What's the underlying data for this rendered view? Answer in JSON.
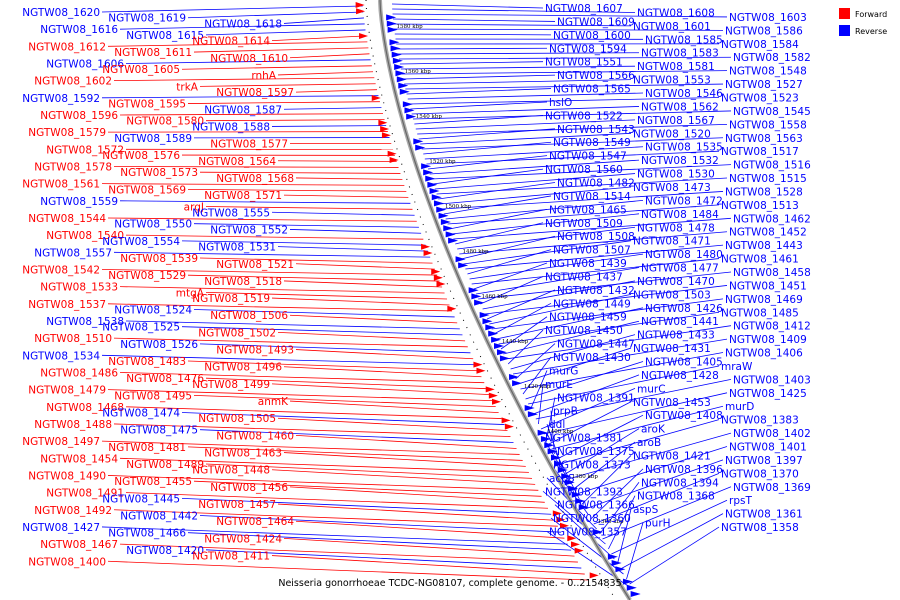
{
  "caption": "Neisseria gonorrhoeae TCDC-NG08107, complete genome. - 0..2154835",
  "legend": [
    {
      "label": "Forward",
      "color": "#ff0000"
    },
    {
      "label": "Reverse",
      "color": "#0000ff"
    }
  ],
  "colors": {
    "forward": "#ff0000",
    "reverse": "#0000ff",
    "backbone": "#888888"
  },
  "ticks": [
    "1580 kbp",
    "1560 kbp",
    "1540 kbp",
    "1520 kbp",
    "1500 kbp",
    "1480 kbp",
    "1460 kbp",
    "1440 kbp",
    "1420 kbp",
    "1400 kbp",
    "1380 kbp",
    "1360 kbp"
  ],
  "left_labels": [
    {
      "t": "NGTW08_1620",
      "s": "r"
    },
    {
      "t": "NGTW08_1619",
      "s": "r"
    },
    {
      "t": "NGTW08_1618",
      "s": "r"
    },
    {
      "t": "NGTW08_1616",
      "s": "r"
    },
    {
      "t": "NGTW08_1615",
      "s": "r"
    },
    {
      "t": "NGTW08_1614",
      "s": "f"
    },
    {
      "t": "NGTW08_1612",
      "s": "f"
    },
    {
      "t": "NGTW08_1611",
      "s": "f"
    },
    {
      "t": "NGTW08_1610",
      "s": "f"
    },
    {
      "t": "NGTW08_1606",
      "s": "r"
    },
    {
      "t": "NGTW08_1605",
      "s": "f"
    },
    {
      "t": "rnhA",
      "s": "f"
    },
    {
      "t": "NGTW08_1602",
      "s": "f"
    },
    {
      "t": "trkA",
      "s": "f"
    },
    {
      "t": "NGTW08_1597",
      "s": "f"
    },
    {
      "t": "NGTW08_1592",
      "s": "r"
    },
    {
      "t": "NGTW08_1595",
      "s": "f"
    },
    {
      "t": "NGTW08_1587",
      "s": "r"
    },
    {
      "t": "NGTW08_1596",
      "s": "f"
    },
    {
      "t": "NGTW08_1580",
      "s": "f"
    },
    {
      "t": "NGTW08_1588",
      "s": "r"
    },
    {
      "t": "NGTW08_1579",
      "s": "f"
    },
    {
      "t": "NGTW08_1589",
      "s": "r"
    },
    {
      "t": "NGTW08_1577",
      "s": "f"
    },
    {
      "t": "NGTW08_1572",
      "s": "f"
    },
    {
      "t": "NGTW08_1576",
      "s": "f"
    },
    {
      "t": "NGTW08_1564",
      "s": "f"
    },
    {
      "t": "NGTW08_1578",
      "s": "f"
    },
    {
      "t": "NGTW08_1573",
      "s": "f"
    },
    {
      "t": "NGTW08_1568",
      "s": "f"
    },
    {
      "t": "NGTW08_1561",
      "s": "f"
    },
    {
      "t": "NGTW08_1569",
      "s": "f"
    },
    {
      "t": "NGTW08_1571",
      "s": "f"
    },
    {
      "t": "NGTW08_1559",
      "s": "r"
    },
    {
      "t": "argJ",
      "s": "f"
    },
    {
      "t": "NGTW08_1555",
      "s": "r"
    },
    {
      "t": "NGTW08_1544",
      "s": "f"
    },
    {
      "t": "NGTW08_1550",
      "s": "r"
    },
    {
      "t": "NGTW08_1552",
      "s": "r"
    },
    {
      "t": "NGTW08_1540",
      "s": "f"
    },
    {
      "t": "NGTW08_1554",
      "s": "r"
    },
    {
      "t": "NGTW08_1531",
      "s": "r"
    },
    {
      "t": "NGTW08_1557",
      "s": "r"
    },
    {
      "t": "NGTW08_1539",
      "s": "f"
    },
    {
      "t": "NGTW08_1521",
      "s": "f"
    },
    {
      "t": "NGTW08_1542",
      "s": "f"
    },
    {
      "t": "NGTW08_1529",
      "s": "f"
    },
    {
      "t": "NGTW08_1518",
      "s": "f"
    },
    {
      "t": "NGTW08_1533",
      "s": "f"
    },
    {
      "t": "mtgA",
      "s": "f"
    },
    {
      "t": "NGTW08_1519",
      "s": "f"
    },
    {
      "t": "NGTW08_1537",
      "s": "f"
    },
    {
      "t": "NGTW08_1524",
      "s": "r"
    },
    {
      "t": "NGTW08_1506",
      "s": "f"
    },
    {
      "t": "NGTW08_1538",
      "s": "r"
    },
    {
      "t": "NGTW08_1525",
      "s": "r"
    },
    {
      "t": "NGTW08_1502",
      "s": "f"
    },
    {
      "t": "NGTW08_1510",
      "s": "f"
    },
    {
      "t": "NGTW08_1526",
      "s": "r"
    },
    {
      "t": "NGTW08_1493",
      "s": "f"
    },
    {
      "t": "NGTW08_1534",
      "s": "r"
    },
    {
      "t": "NGTW08_1483",
      "s": "f"
    },
    {
      "t": "NGTW08_1496",
      "s": "f"
    },
    {
      "t": "NGTW08_1486",
      "s": "f"
    },
    {
      "t": "NGTW08_1476",
      "s": "f"
    },
    {
      "t": "NGTW08_1499",
      "s": "f"
    },
    {
      "t": "NGTW08_1479",
      "s": "f"
    },
    {
      "t": "NGTW08_1495",
      "s": "f"
    },
    {
      "t": "anmK",
      "s": "f"
    },
    {
      "t": "NGTW08_1468",
      "s": "f"
    },
    {
      "t": "NGTW08_1474",
      "s": "r"
    },
    {
      "t": "NGTW08_1505",
      "s": "f"
    },
    {
      "t": "NGTW08_1488",
      "s": "f"
    },
    {
      "t": "NGTW08_1475",
      "s": "r"
    },
    {
      "t": "NGTW08_1460",
      "s": "f"
    },
    {
      "t": "NGTW08_1497",
      "s": "f"
    },
    {
      "t": "NGTW08_1481",
      "s": "f"
    },
    {
      "t": "NGTW08_1463",
      "s": "f"
    },
    {
      "t": "NGTW08_1454",
      "s": "f"
    },
    {
      "t": "NGTW08_1489",
      "s": "f"
    },
    {
      "t": "NGTW08_1448",
      "s": "f"
    },
    {
      "t": "NGTW08_1490",
      "s": "f"
    },
    {
      "t": "NGTW08_1455",
      "s": "f"
    },
    {
      "t": "NGTW08_1456",
      "s": "f"
    },
    {
      "t": "NGTW08_1491",
      "s": "f"
    },
    {
      "t": "NGTW08_1445",
      "s": "r"
    },
    {
      "t": "NGTW08_1457",
      "s": "f"
    },
    {
      "t": "NGTW08_1492",
      "s": "f"
    },
    {
      "t": "NGTW08_1442",
      "s": "r"
    },
    {
      "t": "NGTW08_1464",
      "s": "f"
    },
    {
      "t": "NGTW08_1427",
      "s": "r"
    },
    {
      "t": "NGTW08_1466",
      "s": "r"
    },
    {
      "t": "NGTW08_1424",
      "s": "f"
    },
    {
      "t": "NGTW08_1467",
      "s": "f"
    },
    {
      "t": "NGTW08_1420",
      "s": "r"
    },
    {
      "t": "NGTW08_1411",
      "s": "f"
    },
    {
      "t": "NGTW08_1400",
      "s": "f"
    }
  ],
  "right_labels": [
    {
      "t": "NGTW08_1607",
      "s": "r"
    },
    {
      "t": "NGTW08_1608",
      "s": "r"
    },
    {
      "t": "NGTW08_1603",
      "s": "r"
    },
    {
      "t": "NGTW08_1609",
      "s": "r"
    },
    {
      "t": "NGTW08_1601",
      "s": "r"
    },
    {
      "t": "NGTW08_1586",
      "s": "r"
    },
    {
      "t": "NGTW08_1600",
      "s": "r"
    },
    {
      "t": "NGTW08_1585",
      "s": "r"
    },
    {
      "t": "NGTW08_1584",
      "s": "r"
    },
    {
      "t": "NGTW08_1594",
      "s": "r"
    },
    {
      "t": "NGTW08_1583",
      "s": "r"
    },
    {
      "t": "NGTW08_1582",
      "s": "r"
    },
    {
      "t": "NGTW08_1551",
      "s": "r"
    },
    {
      "t": "NGTW08_1581",
      "s": "r"
    },
    {
      "t": "NGTW08_1548",
      "s": "r"
    },
    {
      "t": "NGTW08_1566",
      "s": "r"
    },
    {
      "t": "NGTW08_1553",
      "s": "r"
    },
    {
      "t": "NGTW08_1527",
      "s": "r"
    },
    {
      "t": "NGTW08_1565",
      "s": "r"
    },
    {
      "t": "NGTW08_1546",
      "s": "r"
    },
    {
      "t": "NGTW08_1523",
      "s": "r"
    },
    {
      "t": "hslO",
      "s": "r"
    },
    {
      "t": "NGTW08_1562",
      "s": "r"
    },
    {
      "t": "NGTW08_1545",
      "s": "r"
    },
    {
      "t": "NGTW08_1522",
      "s": "r"
    },
    {
      "t": "NGTW08_1567",
      "s": "r"
    },
    {
      "t": "NGTW08_1558",
      "s": "r"
    },
    {
      "t": "NGTW08_1543",
      "s": "r"
    },
    {
      "t": "NGTW08_1520",
      "s": "r"
    },
    {
      "t": "NGTW08_1563",
      "s": "r"
    },
    {
      "t": "NGTW08_1549",
      "s": "r"
    },
    {
      "t": "NGTW08_1535",
      "s": "r"
    },
    {
      "t": "NGTW08_1517",
      "s": "r"
    },
    {
      "t": "NGTW08_1547",
      "s": "r"
    },
    {
      "t": "NGTW08_1532",
      "s": "r"
    },
    {
      "t": "NGTW08_1516",
      "s": "r"
    },
    {
      "t": "NGTW08_1560",
      "s": "r"
    },
    {
      "t": "NGTW08_1530",
      "s": "r"
    },
    {
      "t": "NGTW08_1515",
      "s": "r"
    },
    {
      "t": "NGTW08_1482",
      "s": "r"
    },
    {
      "t": "NGTW08_1473",
      "s": "r"
    },
    {
      "t": "NGTW08_1528",
      "s": "r"
    },
    {
      "t": "NGTW08_1514",
      "s": "r"
    },
    {
      "t": "NGTW08_1472",
      "s": "r"
    },
    {
      "t": "NGTW08_1513",
      "s": "r"
    },
    {
      "t": "NGTW08_1465",
      "s": "r"
    },
    {
      "t": "NGTW08_1484",
      "s": "r"
    },
    {
      "t": "NGTW08_1462",
      "s": "r"
    },
    {
      "t": "NGTW08_1509",
      "s": "r"
    },
    {
      "t": "NGTW08_1478",
      "s": "r"
    },
    {
      "t": "NGTW08_1452",
      "s": "r"
    },
    {
      "t": "NGTW08_1508",
      "s": "r"
    },
    {
      "t": "NGTW08_1471",
      "s": "r"
    },
    {
      "t": "NGTW08_1443",
      "s": "r"
    },
    {
      "t": "NGTW08_1507",
      "s": "r"
    },
    {
      "t": "NGTW08_1480",
      "s": "r"
    },
    {
      "t": "NGTW08_1461",
      "s": "r"
    },
    {
      "t": "NGTW08_1439",
      "s": "r"
    },
    {
      "t": "NGTW08_1477",
      "s": "r"
    },
    {
      "t": "NGTW08_1458",
      "s": "r"
    },
    {
      "t": "NGTW08_1437",
      "s": "r"
    },
    {
      "t": "NGTW08_1470",
      "s": "r"
    },
    {
      "t": "NGTW08_1451",
      "s": "r"
    },
    {
      "t": "NGTW08_1432",
      "s": "r"
    },
    {
      "t": "NGTW08_1503",
      "s": "r"
    },
    {
      "t": "NGTW08_1469",
      "s": "r"
    },
    {
      "t": "NGTW08_1449",
      "s": "r"
    },
    {
      "t": "NGTW08_1426",
      "s": "r"
    },
    {
      "t": "NGTW08_1485",
      "s": "r"
    },
    {
      "t": "NGTW08_1459",
      "s": "r"
    },
    {
      "t": "NGTW08_1441",
      "s": "r"
    },
    {
      "t": "NGTW08_1412",
      "s": "r"
    },
    {
      "t": "NGTW08_1450",
      "s": "r"
    },
    {
      "t": "NGTW08_1433",
      "s": "r"
    },
    {
      "t": "NGTW08_1409",
      "s": "r"
    },
    {
      "t": "NGTW08_1447",
      "s": "r"
    },
    {
      "t": "NGTW08_1431",
      "s": "r"
    },
    {
      "t": "NGTW08_1406",
      "s": "r"
    },
    {
      "t": "NGTW08_1430",
      "s": "r"
    },
    {
      "t": "NGTW08_1405",
      "s": "r"
    },
    {
      "t": "mraW",
      "s": "r"
    },
    {
      "t": "murG",
      "s": "r"
    },
    {
      "t": "NGTW08_1428",
      "s": "r"
    },
    {
      "t": "NGTW08_1403",
      "s": "r"
    },
    {
      "t": "murE",
      "s": "r"
    },
    {
      "t": "murC",
      "s": "r"
    },
    {
      "t": "NGTW08_1425",
      "s": "r"
    },
    {
      "t": "NGTW08_1391",
      "s": "r"
    },
    {
      "t": "NGTW08_1453",
      "s": "r"
    },
    {
      "t": "murD",
      "s": "r"
    },
    {
      "t": "prpB",
      "s": "r"
    },
    {
      "t": "NGTW08_1408",
      "s": "r"
    },
    {
      "t": "NGTW08_1383",
      "s": "r"
    },
    {
      "t": "ddl",
      "s": "r"
    },
    {
      "t": "aroK",
      "s": "r"
    },
    {
      "t": "NGTW08_1402",
      "s": "r"
    },
    {
      "t": "NGTW08_1381",
      "s": "r"
    },
    {
      "t": "aroB",
      "s": "r"
    },
    {
      "t": "NGTW08_1401",
      "s": "r"
    },
    {
      "t": "NGTW08_1375",
      "s": "r"
    },
    {
      "t": "NGTW08_1421",
      "s": "r"
    },
    {
      "t": "NGTW08_1397",
      "s": "r"
    },
    {
      "t": "NGTW08_1373",
      "s": "r"
    },
    {
      "t": "NGTW08_1396",
      "s": "r"
    },
    {
      "t": "NGTW08_1370",
      "s": "r"
    },
    {
      "t": "acpS",
      "s": "r"
    },
    {
      "t": "NGTW08_1394",
      "s": "r"
    },
    {
      "t": "NGTW08_1369",
      "s": "r"
    },
    {
      "t": "NGTW08_1393",
      "s": "r"
    },
    {
      "t": "NGTW08_1368",
      "s": "r"
    },
    {
      "t": "rpsT",
      "s": "r"
    },
    {
      "t": "NGTW08_1366",
      "s": "r"
    },
    {
      "t": "aspS",
      "s": "r"
    },
    {
      "t": "NGTW08_1361",
      "s": "r"
    },
    {
      "t": "NGTW08_1360",
      "s": "r"
    },
    {
      "t": "purH",
      "s": "r"
    },
    {
      "t": "NGTW08_1358",
      "s": "r"
    },
    {
      "t": "NGTW08_1357",
      "s": "r"
    }
  ]
}
